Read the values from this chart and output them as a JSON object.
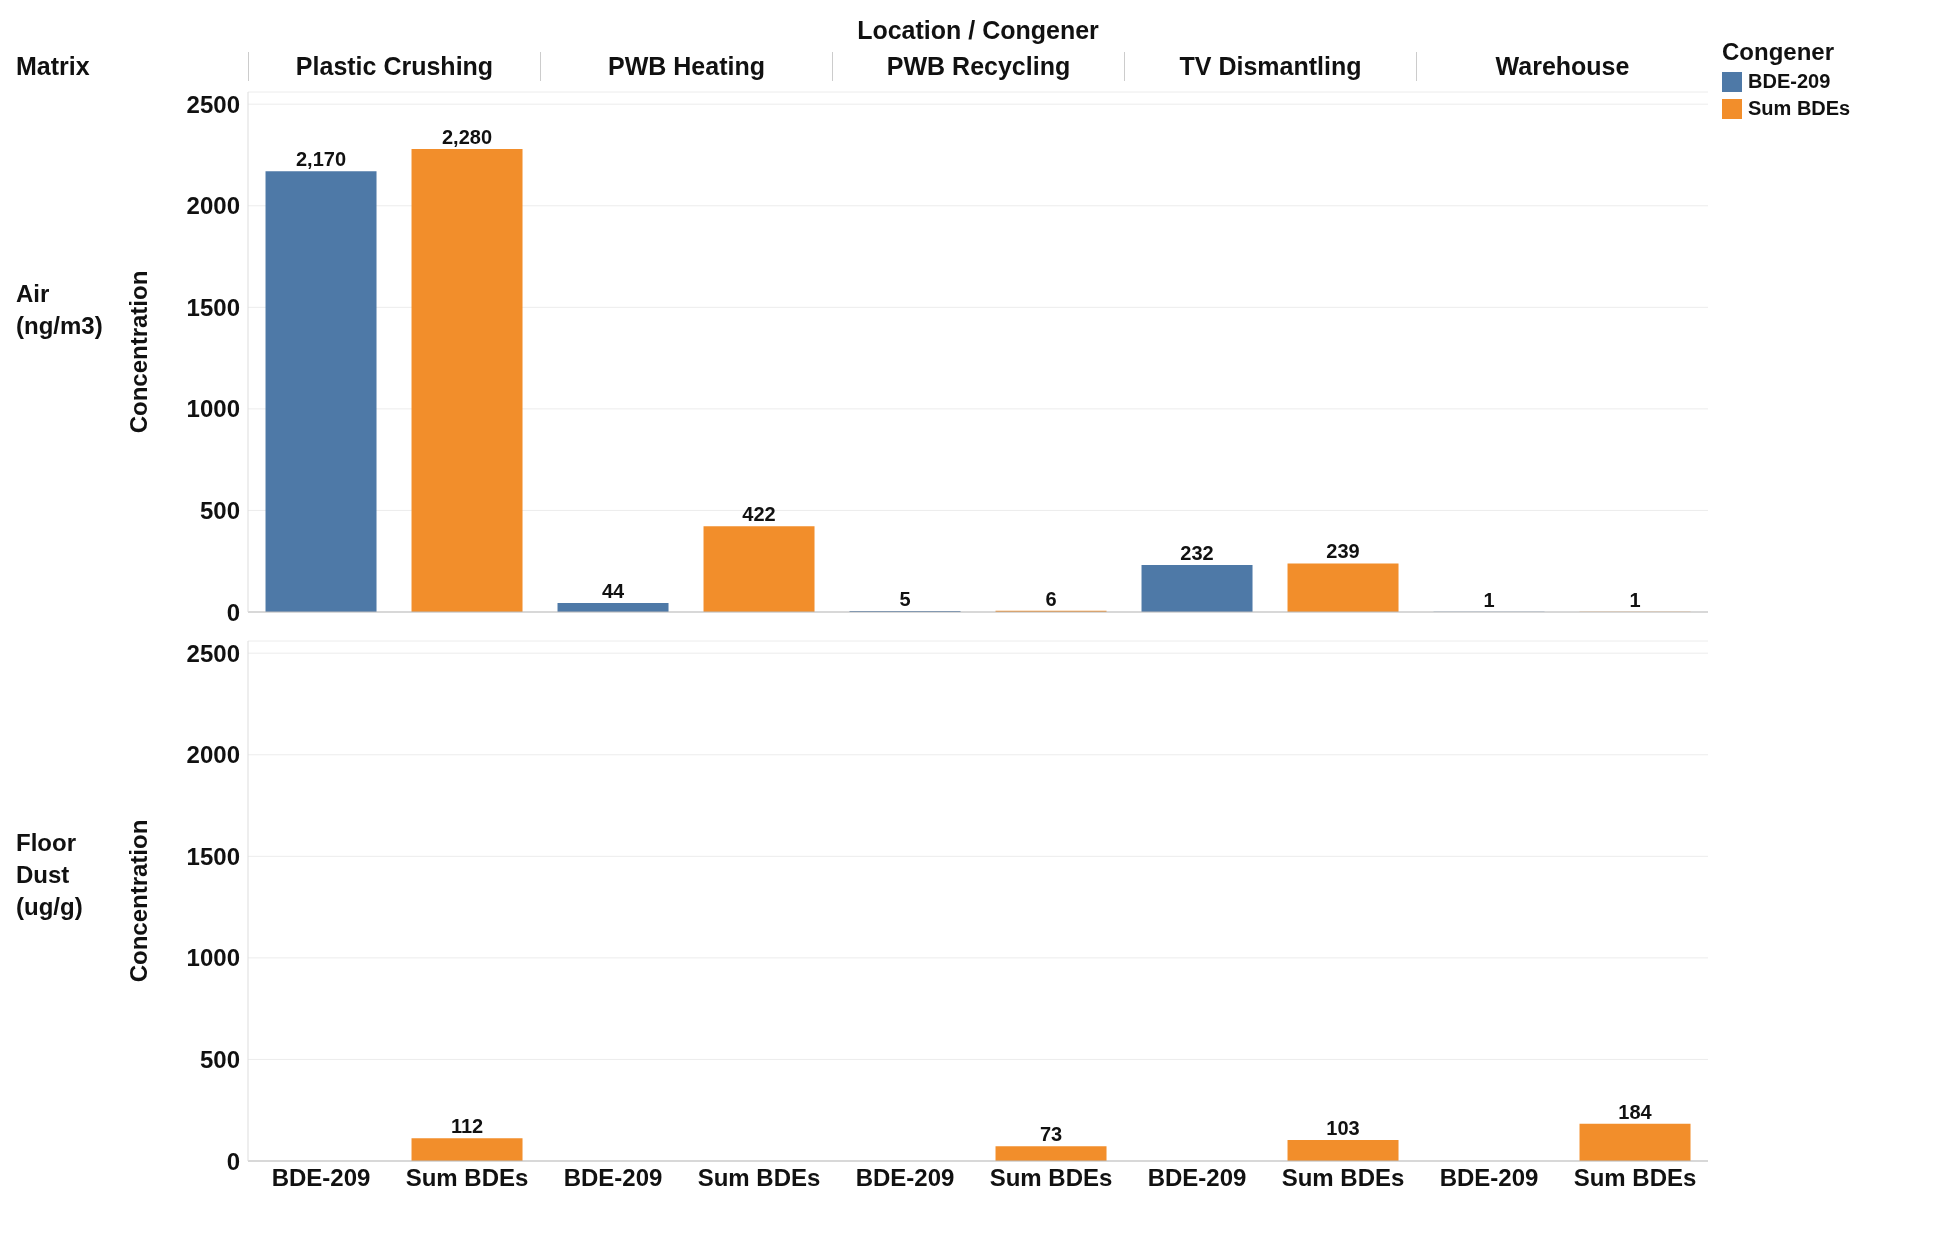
{
  "chart_data": [
    {
      "type": "bar",
      "title": "Air\n(ng/m3)",
      "ylabel": "Concentration",
      "series": [
        {
          "name": "BDE-209",
          "color": "#4e79a7",
          "values": [
            2170,
            null,
            44,
            null,
            5,
            null,
            232,
            null,
            1,
            null
          ],
          "value_labels": [
            "2,170",
            null,
            "44",
            null,
            "5",
            null,
            "232",
            null,
            "1",
            null
          ]
        },
        {
          "name": "Sum BDEs",
          "color": "#f28e2b",
          "values": [
            null,
            2280,
            null,
            422,
            null,
            6,
            null,
            239,
            null,
            1
          ],
          "value_labels": [
            null,
            "2,280",
            null,
            "422",
            null,
            "6",
            null,
            "239",
            null,
            "1"
          ]
        }
      ],
      "stacked": true,
      "ylim": [
        0,
        2560
      ],
      "yticks": [
        0,
        500,
        1000,
        1500,
        2000,
        2500
      ],
      "grid": "y",
      "tick_labels": "y",
      "legend": "top right",
      "legend_title": "Congener",
      "annotations": [
        "Location  /  Congener",
        "Matrix",
        "Plastic Crushing",
        "PWB Heating",
        "PWB Recycling",
        "TV Dismantling",
        "Warehouse"
      ]
    },
    {
      "type": "bar",
      "title": "Floor\nDust\n(ug/g)",
      "ylabel": "Concentration",
      "categories": [
        "BDE-209",
        "Sum BDEs",
        "BDE-209",
        "Sum BDEs",
        "BDE-209",
        "Sum BDEs",
        "BDE-209",
        "Sum BDEs",
        "BDE-209",
        "Sum BDEs"
      ],
      "series": [
        {
          "color": "#4e79a7",
          "values": [
            null,
            null,
            null,
            null,
            null,
            null,
            null,
            null,
            null,
            null
          ]
        },
        {
          "color": "#f28e2b",
          "values": [
            null,
            112,
            null,
            null,
            null,
            73,
            null,
            103,
            null,
            184
          ],
          "value_labels": [
            null,
            "112",
            null,
            null,
            null,
            "73",
            null,
            "103",
            null,
            "184"
          ]
        }
      ],
      "stacked": true,
      "ylim": [
        0,
        2560
      ],
      "yticks": [
        0,
        500,
        1000,
        1500,
        2000,
        2500
      ],
      "grid": "y"
    }
  ]
}
